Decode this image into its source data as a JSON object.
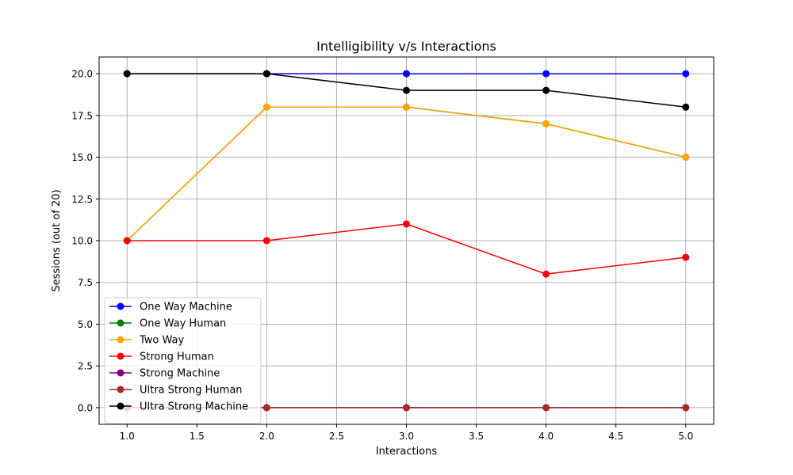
{
  "chart_data": {
    "type": "line",
    "title": "Intelligibility v/s Interactions",
    "xlabel": "Interactions",
    "ylabel": "Sessions (out of 20)",
    "xlim": [
      0.8,
      5.2
    ],
    "ylim": [
      -1.0,
      21.0
    ],
    "xticks": [
      1.0,
      1.5,
      2.0,
      2.5,
      3.0,
      3.5,
      4.0,
      4.5,
      5.0
    ],
    "xtick_labels": [
      "1.0",
      "1.5",
      "2.0",
      "2.5",
      "3.0",
      "3.5",
      "4.0",
      "4.5",
      "5.0"
    ],
    "yticks": [
      0.0,
      2.5,
      5.0,
      7.5,
      10.0,
      12.5,
      15.0,
      17.5,
      20.0
    ],
    "ytick_labels": [
      "0.0",
      "2.5",
      "5.0",
      "7.5",
      "10.0",
      "12.5",
      "15.0",
      "17.5",
      "20.0"
    ],
    "grid": true,
    "legend_position": "lower-left",
    "x": [
      1,
      2,
      3,
      4,
      5
    ],
    "series": [
      {
        "name": "One Way Machine",
        "color": "#0000ff",
        "values": [
          20,
          20,
          20,
          20,
          20
        ]
      },
      {
        "name": "One Way Human",
        "color": "#008000",
        "values": [
          10,
          18,
          18,
          17,
          15
        ]
      },
      {
        "name": "Two Way",
        "color": "#ffa500",
        "values": [
          10,
          18,
          18,
          17,
          15
        ]
      },
      {
        "name": "Strong Human",
        "color": "#ff0000",
        "values": [
          10,
          10,
          11,
          8,
          9
        ]
      },
      {
        "name": "Strong Machine",
        "color": "#800080",
        "values": [
          0,
          0,
          0,
          0,
          0
        ]
      },
      {
        "name": "Ultra Strong Human",
        "color": "#a52a2a",
        "values": [
          0,
          0,
          0,
          0,
          0
        ]
      },
      {
        "name": "Ultra Strong Machine",
        "color": "#000000",
        "values": [
          20,
          20,
          19,
          19,
          18
        ]
      }
    ]
  }
}
